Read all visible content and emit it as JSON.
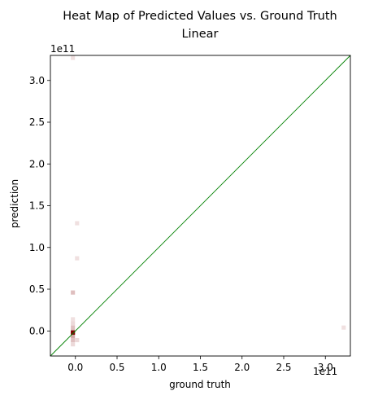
{
  "chart_data": {
    "type": "heatmap",
    "title": "Heat Map of Predicted Values vs. Ground Truth",
    "subtitle": "Linear",
    "xlabel": "ground truth",
    "ylabel": "prediction",
    "x_offset_label": "1e11",
    "y_offset_label": "1e11",
    "xlim": [
      -0.3,
      3.3
    ],
    "ylim": [
      -0.3,
      3.3
    ],
    "x_ticks": [
      "0.0",
      "0.5",
      "1.0",
      "1.5",
      "2.0",
      "2.5",
      "3.0"
    ],
    "y_ticks": [
      "0.0",
      "0.5",
      "1.0",
      "1.5",
      "2.0",
      "2.5",
      "3.0"
    ],
    "grid": false,
    "reference_line": {
      "from": [
        -0.3,
        -0.3
      ],
      "to": [
        3.3,
        3.3
      ],
      "color": "#008000"
    },
    "cell_size": 0.05,
    "cells": [
      {
        "x": -0.03,
        "y": 3.27,
        "density": 0.12
      },
      {
        "x": 0.02,
        "y": 1.29,
        "density": 0.12
      },
      {
        "x": 0.02,
        "y": 0.87,
        "density": 0.12
      },
      {
        "x": -0.03,
        "y": 0.46,
        "density": 0.25
      },
      {
        "x": 3.22,
        "y": 0.04,
        "density": 0.12
      },
      {
        "x": -0.03,
        "y": 0.14,
        "density": 0.12
      },
      {
        "x": -0.03,
        "y": 0.09,
        "density": 0.15
      },
      {
        "x": -0.03,
        "y": 0.04,
        "density": 0.25
      },
      {
        "x": -0.03,
        "y": -0.01,
        "density": 0.45
      },
      {
        "x": -0.03,
        "y": -0.06,
        "density": 0.35
      },
      {
        "x": -0.03,
        "y": -0.11,
        "density": 0.25
      },
      {
        "x": -0.03,
        "y": -0.16,
        "density": 0.15
      },
      {
        "x": -0.03,
        "y": -0.02,
        "density": 1.0
      },
      {
        "x": 0.02,
        "y": -0.11,
        "density": 0.15
      }
    ],
    "colormap": {
      "low": "#ffffff",
      "high": "#7f0000"
    }
  }
}
